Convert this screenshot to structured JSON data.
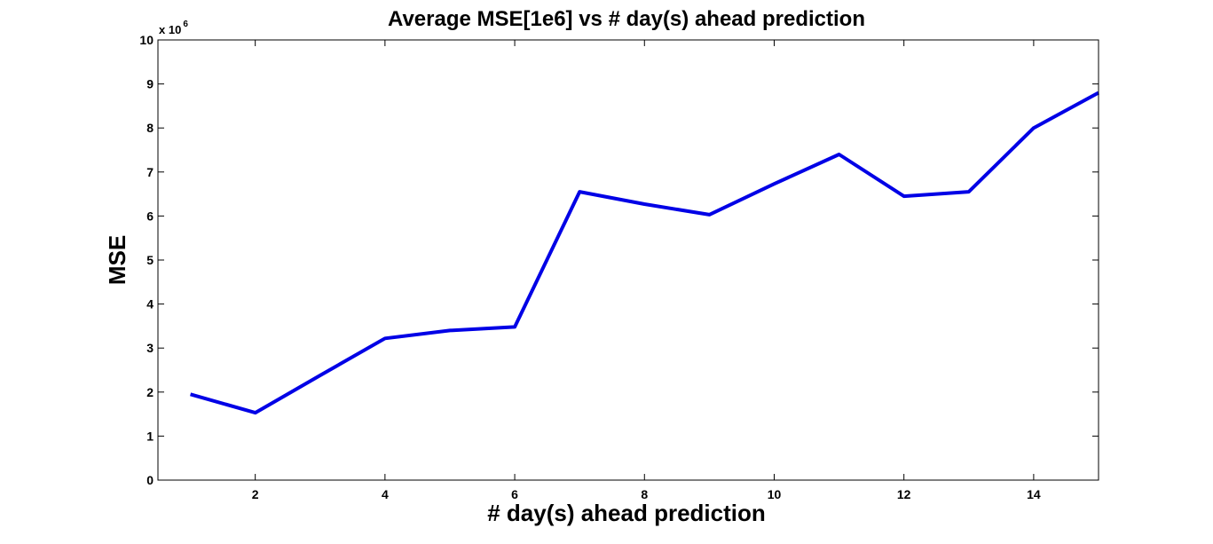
{
  "chart_data": {
    "type": "line",
    "title": "Average MSE[1e6] vs # day(s) ahead prediction",
    "xlabel": "# day(s) ahead prediction",
    "ylabel": "MSE",
    "y_exponent_base": "x 10",
    "y_exponent_power": "6",
    "xlim": [
      0.5,
      15
    ],
    "ylim": [
      0,
      10
    ],
    "x_ticks": [
      2,
      4,
      6,
      8,
      10,
      12,
      14
    ],
    "y_ticks": [
      0,
      1,
      2,
      3,
      4,
      5,
      6,
      7,
      8,
      9,
      10
    ],
    "grid": false,
    "series": [
      {
        "color": "#0000e6",
        "x": [
          1,
          2,
          3,
          4,
          5,
          6,
          7,
          8,
          9,
          10,
          11,
          12,
          13,
          14,
          15
        ],
        "y": [
          1.95,
          1.53,
          2.38,
          3.22,
          3.4,
          3.48,
          6.55,
          6.27,
          6.03,
          6.73,
          7.4,
          6.45,
          6.55,
          8.0,
          8.8
        ]
      }
    ]
  }
}
